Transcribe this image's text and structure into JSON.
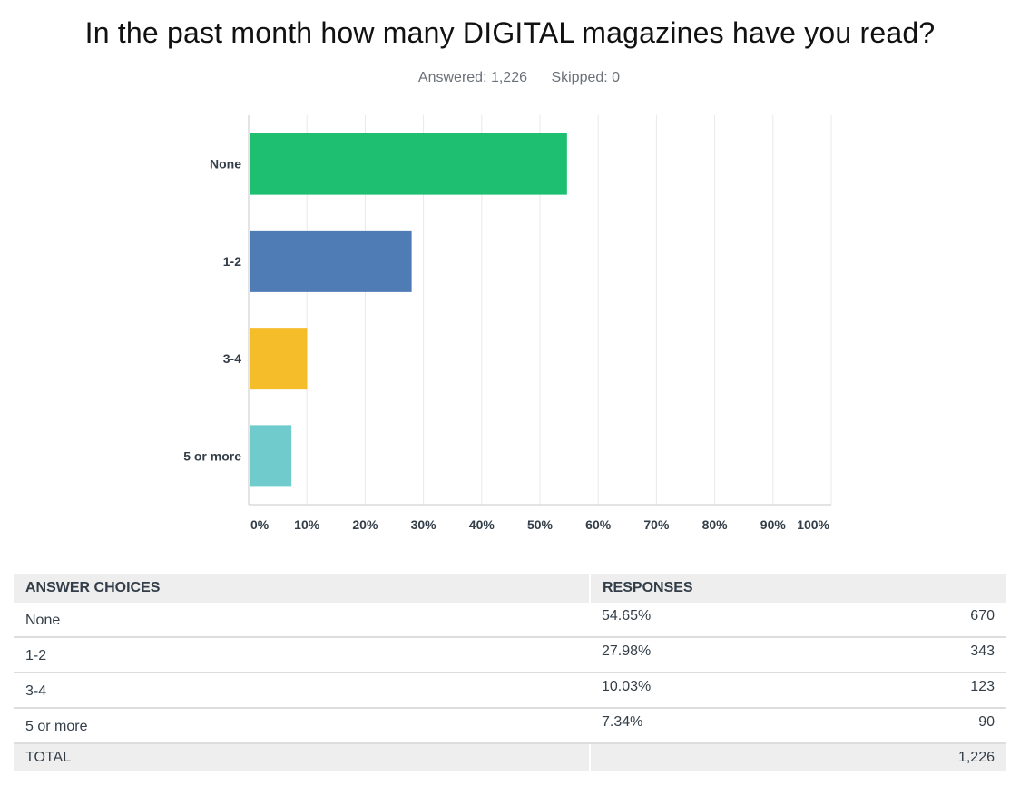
{
  "question": {
    "title": "In the past month how many DIGITAL magazines have you read?",
    "answered": "Answered: 1,226",
    "skipped": "Skipped: 0"
  },
  "chart_data": {
    "type": "bar",
    "orientation": "horizontal",
    "categories": [
      "None",
      "1-2",
      "3-4",
      "5 or more"
    ],
    "values": [
      54.65,
      27.98,
      10.03,
      7.34
    ],
    "colors": [
      "#1fbf72",
      "#507cb6",
      "#f6bd2b",
      "#6fcbcc"
    ],
    "xlim": [
      0,
      100
    ],
    "xticks": [
      "0%",
      "10%",
      "20%",
      "30%",
      "40%",
      "50%",
      "60%",
      "70%",
      "80%",
      "90%",
      "100%"
    ],
    "grid": "vertical"
  },
  "table": {
    "headers": [
      "ANSWER CHOICES",
      "RESPONSES"
    ],
    "rows": [
      {
        "choice": "None",
        "percent": "54.65%",
        "count": "670"
      },
      {
        "choice": "1-2",
        "percent": "27.98%",
        "count": "343"
      },
      {
        "choice": "3-4",
        "percent": "10.03%",
        "count": "123"
      },
      {
        "choice": "5 or more",
        "percent": "7.34%",
        "count": "90"
      }
    ],
    "total_label": "TOTAL",
    "total_value": "1,226"
  }
}
